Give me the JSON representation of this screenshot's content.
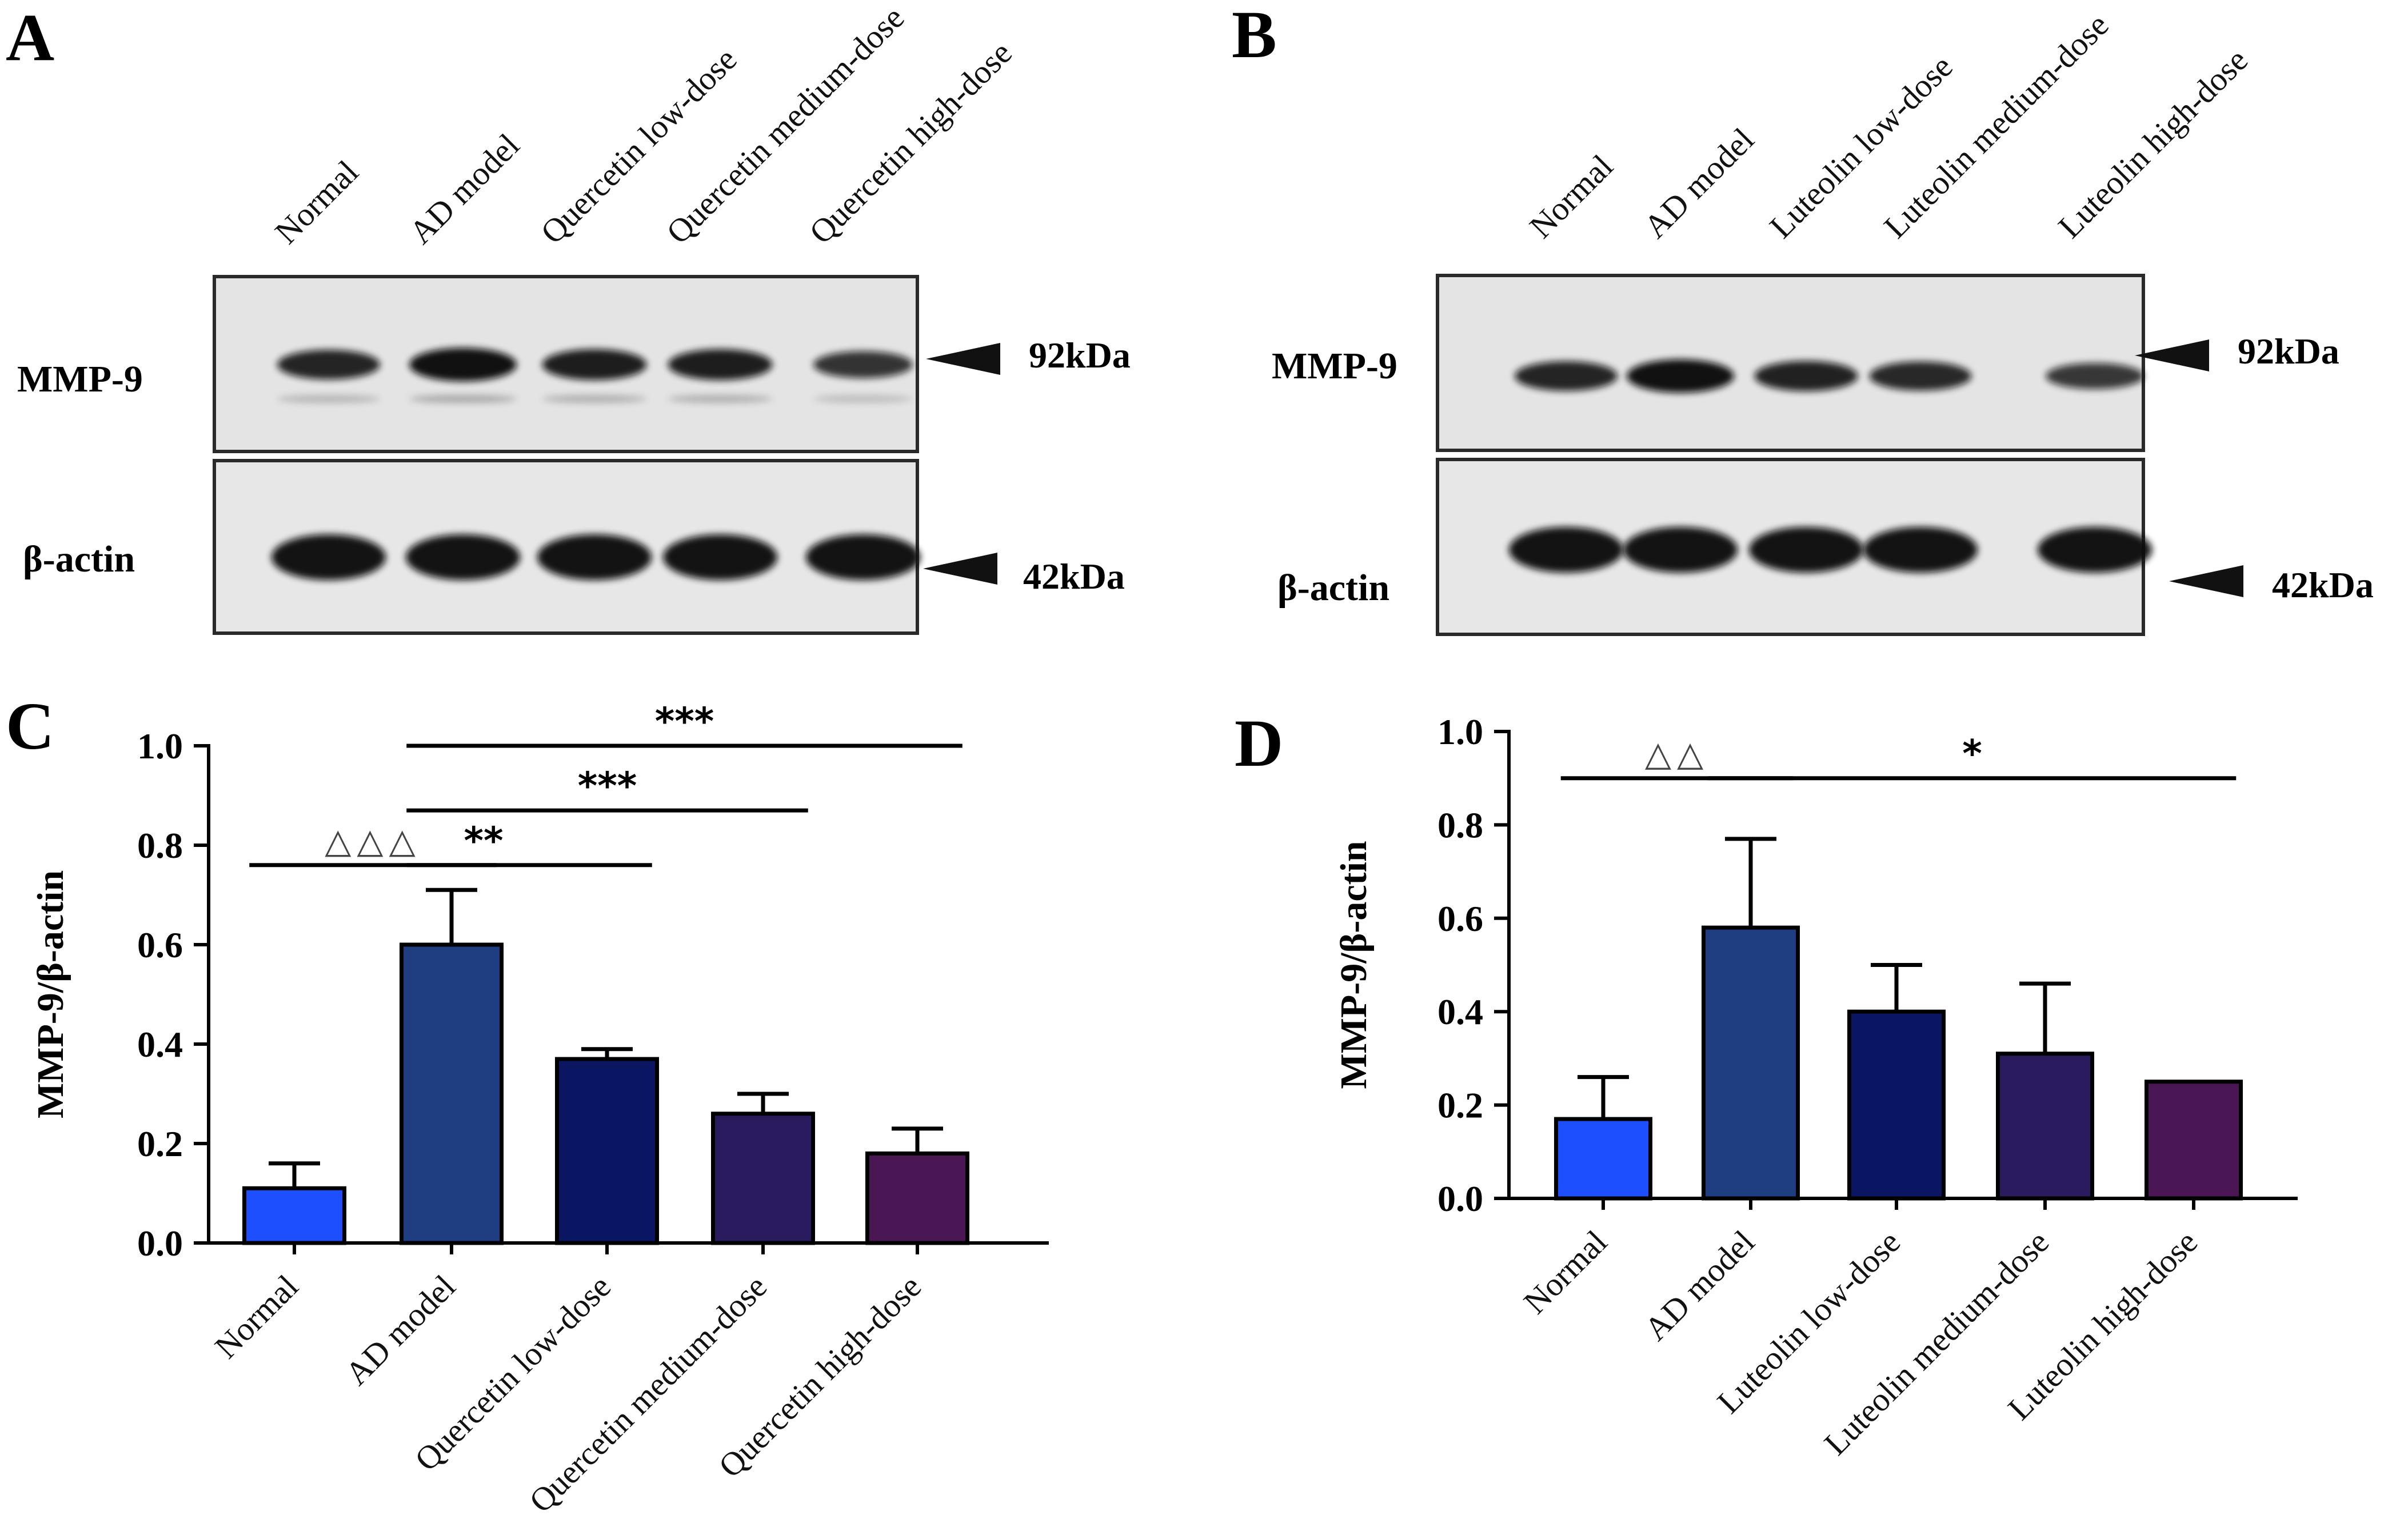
{
  "panels": {
    "A": {
      "letter": "A",
      "lanes": [
        "Normal",
        "AD model",
        "Quercetin low-dose",
        "Quercetin medium-dose",
        "Quercetin high-dose"
      ],
      "blots": [
        {
          "label": "MMP-9",
          "marker": "92kDa",
          "intensity": [
            0.75,
            0.95,
            0.82,
            0.82,
            0.6
          ]
        },
        {
          "label": "β-actin",
          "marker": "42kDa",
          "intensity": [
            1,
            1,
            1,
            1,
            1
          ]
        }
      ]
    },
    "B": {
      "letter": "B",
      "lanes": [
        "Normal",
        "AD model",
        "Luteolin low-dose",
        "Luteolin medium-dose",
        "Luteolin high-dose"
      ],
      "blots": [
        {
          "label": "MMP-9",
          "marker": "92kDa",
          "intensity": [
            0.75,
            0.95,
            0.78,
            0.72,
            0.55
          ]
        },
        {
          "label": "β-actin",
          "marker": "42kDa",
          "intensity": [
            1,
            1,
            1,
            1,
            1
          ]
        }
      ]
    }
  },
  "chart_data": [
    {
      "panel": "C",
      "type": "bar",
      "ylabel": "MMP-9/β-actin",
      "ylim": [
        0,
        1.0
      ],
      "yticks": [
        "0.0",
        "0.2",
        "0.4",
        "0.6",
        "0.8",
        "1.0"
      ],
      "categories": [
        "Normal",
        "AD model",
        "Quercetin low-dose",
        "Quercetin medium-dose",
        "Quercetin high-dose"
      ],
      "values": [
        0.11,
        0.6,
        0.37,
        0.26,
        0.18
      ],
      "errors": [
        0.05,
        0.11,
        0.02,
        0.04,
        0.05
      ],
      "colors": [
        "#1e4fff",
        "#1f3e82",
        "#0b1662",
        "#2a1a5e",
        "#4a1653"
      ],
      "annotations": [
        {
          "text": "△△△",
          "from": 0,
          "to": 1,
          "y": 0.76,
          "style": "triangle"
        },
        {
          "text": "**",
          "from": 1,
          "to": 2,
          "y": 0.76,
          "style": "star"
        },
        {
          "text": "***",
          "from": 1,
          "to": 3,
          "y": 0.87,
          "style": "star"
        },
        {
          "text": "***",
          "from": 1,
          "to": 4,
          "y": 1.0,
          "style": "star"
        }
      ]
    },
    {
      "panel": "D",
      "type": "bar",
      "ylabel": "MMP-9/β-actin",
      "ylim": [
        0,
        1.0
      ],
      "yticks": [
        "0.0",
        "0.2",
        "0.4",
        "0.6",
        "0.8",
        "1.0"
      ],
      "categories": [
        "Normal",
        "AD model",
        "Luteolin low-dose",
        "Luteolin medium-dose",
        "Luteolin high-dose"
      ],
      "values": [
        0.17,
        0.58,
        0.4,
        0.31,
        0.25
      ],
      "errors": [
        0.09,
        0.19,
        0.1,
        0.15,
        0.0
      ],
      "colors": [
        "#1e4fff",
        "#1f3e82",
        "#0b1662",
        "#2a1a5e",
        "#4a1653"
      ],
      "annotations": [
        {
          "text": "△△",
          "from": 0,
          "to": 1,
          "y": 0.9,
          "style": "triangle"
        },
        {
          "text": "*",
          "from": 1,
          "to": 4,
          "y": 0.9,
          "style": "star"
        }
      ]
    }
  ]
}
